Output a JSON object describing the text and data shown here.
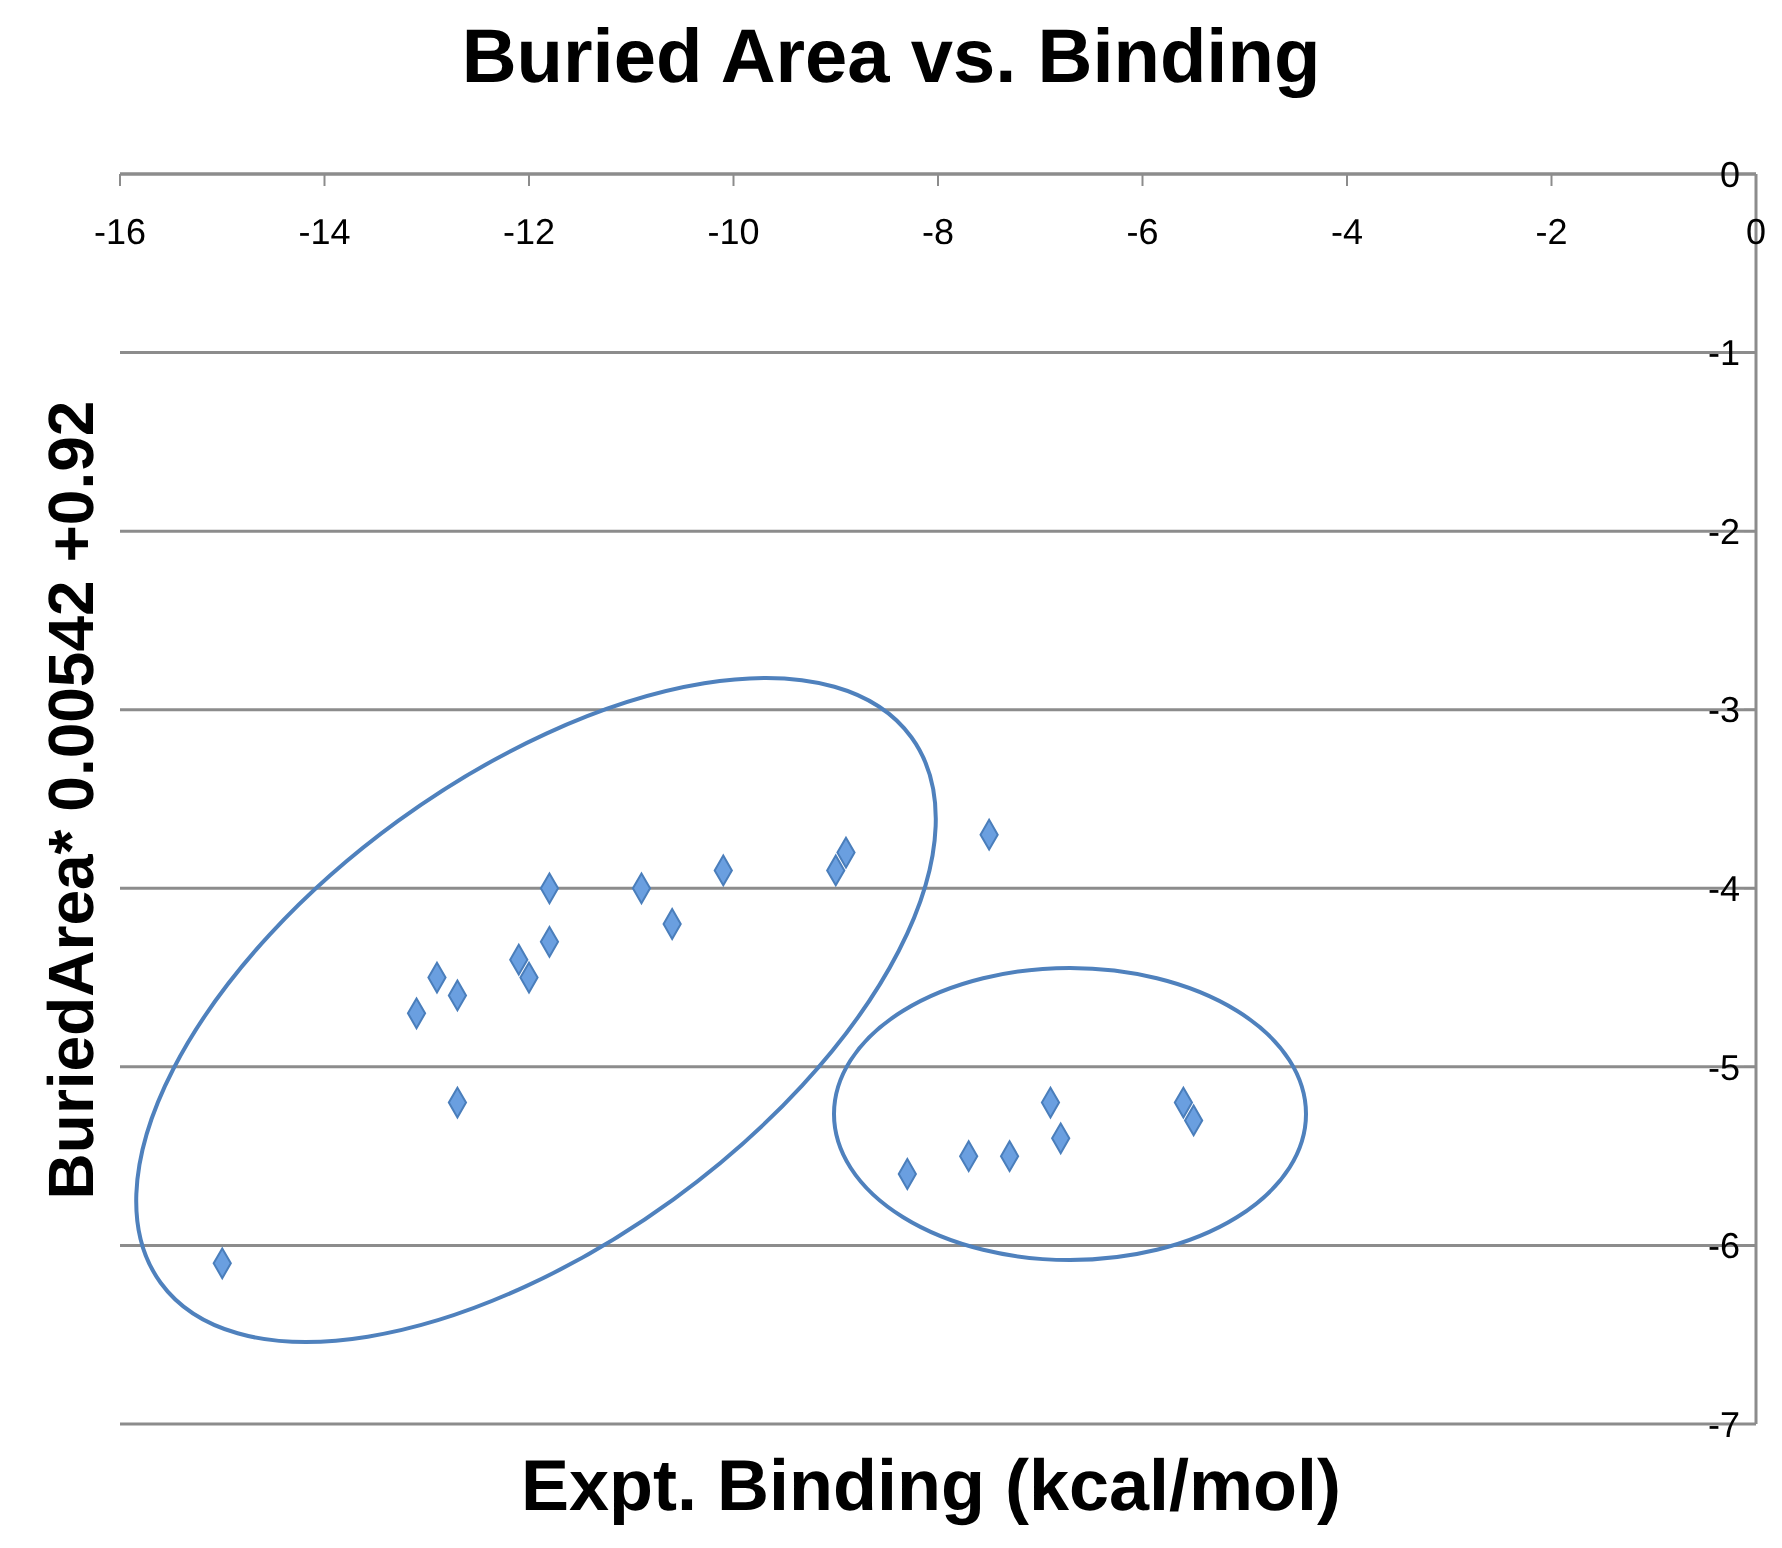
{
  "chart_data": {
    "type": "scatter",
    "title": "Buried Area vs. Binding",
    "xlabel": "Expt. Binding (kcal/mol)",
    "ylabel": "BuriedArea* 0.00542 +0.92",
    "x": [
      -15.0,
      -13.1,
      -12.9,
      -12.7,
      -12.7,
      -12.1,
      -12.0,
      -11.8,
      -11.8,
      -10.9,
      -10.6,
      -10.1,
      -9.0,
      -8.9,
      -7.5,
      -8.3,
      -7.7,
      -7.3,
      -6.9,
      -6.8,
      -5.6,
      -5.5
    ],
    "values": [
      -6.1,
      -4.7,
      -4.5,
      -4.6,
      -5.2,
      -4.4,
      -4.5,
      -4.3,
      -4.0,
      -4.0,
      -4.2,
      -3.9,
      -3.9,
      -3.8,
      -3.7,
      -5.6,
      -5.5,
      -5.5,
      -5.2,
      -5.4,
      -5.2,
      -5.3
    ],
    "color": "#6a9fe0",
    "marker": "diamond",
    "xlim": [
      -16,
      0
    ],
    "xticks": [
      -16,
      -14,
      -12,
      -10,
      -8,
      -6,
      -4,
      -2,
      0
    ],
    "ylim": [
      -7,
      0
    ],
    "yticks": [
      -7,
      -6,
      -5,
      -4,
      -3,
      -2,
      -1,
      0
    ],
    "grid": "y"
  }
}
